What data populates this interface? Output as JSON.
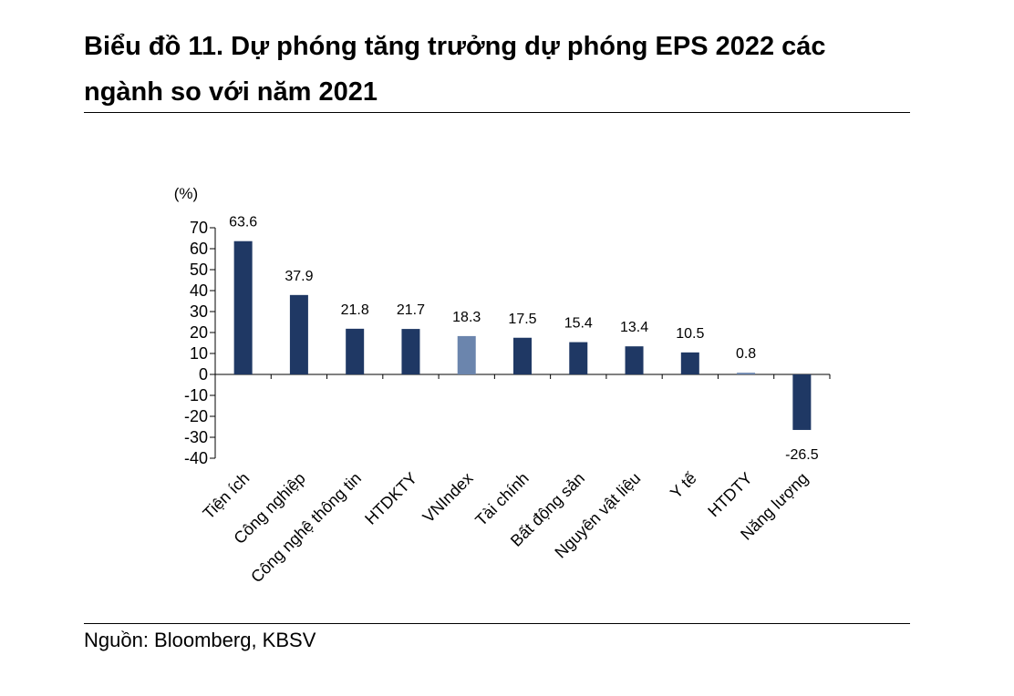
{
  "header": {
    "title": "Biểu đồ 11. Dự phóng tăng trưởng dự phóng EPS 2022 các ngành so với năm 2021"
  },
  "footer": {
    "source": "Nguồn: Bloomberg, KBSV"
  },
  "colors": {
    "bar": "#1f3864",
    "highlight": "#6b85ad",
    "axis": "#000000"
  },
  "chart_data": {
    "type": "bar",
    "title": "Biểu đồ 11. Dự phóng tăng trưởng dự phóng EPS 2022 các ngành so với năm 2021",
    "ylabel": "(%)",
    "xlabel": "",
    "ylim": [
      -40,
      70
    ],
    "yticks": [
      70,
      60,
      50,
      40,
      30,
      20,
      10,
      0,
      -10,
      -20,
      -30,
      -40
    ],
    "categories": [
      "Tiện ích",
      "Công nghiệp",
      "Công nghệ thông tin",
      "HTDKTY",
      "VNIndex",
      "Tài chính",
      "Bất động sản",
      "Nguyên vật liệu",
      "Y tế",
      "HTDTY",
      "Năng lượng"
    ],
    "values": [
      63.6,
      37.9,
      21.8,
      21.7,
      18.3,
      17.5,
      15.4,
      13.4,
      10.5,
      0.8,
      -26.5
    ],
    "value_labels": [
      "63.6",
      "37.9",
      "21.8",
      "21.7",
      "18.3",
      "17.5",
      "15.4",
      "13.4",
      "10.5",
      "0.8",
      "-26.5"
    ],
    "highlighted": [
      "VNIndex",
      "HTDTY"
    ],
    "grid": false,
    "legend": "none"
  }
}
